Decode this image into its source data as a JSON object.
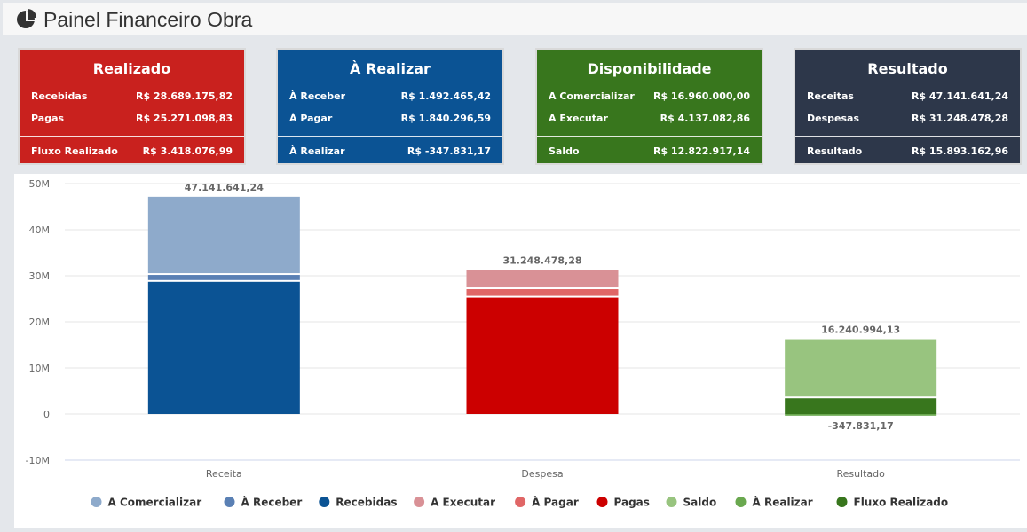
{
  "header": {
    "title": "Painel Financeiro Obra"
  },
  "cards": [
    {
      "title": "Realizado",
      "color": "#c9211e",
      "rows": [
        {
          "label": "Recebidas",
          "value": "R$ 28.689.175,82"
        },
        {
          "label": "Pagas",
          "value": "R$ 25.271.098,83"
        }
      ],
      "footer": {
        "label": "Fluxo Realizado",
        "value": "R$ 3.418.076,99"
      }
    },
    {
      "title": "À Realizar",
      "color": "#0b5394",
      "rows": [
        {
          "label": "À Receber",
          "value": "R$ 1.492.465,42"
        },
        {
          "label": "À Pagar",
          "value": "R$ 1.840.296,59"
        }
      ],
      "footer": {
        "label": "À Realizar",
        "value": "R$ -347.831,17"
      }
    },
    {
      "title": "Disponibilidade",
      "color": "#38761d",
      "rows": [
        {
          "label": "A Comercializar",
          "value": "R$ 16.960.000,00"
        },
        {
          "label": "A Executar",
          "value": "R$ 4.137.082,86"
        }
      ],
      "footer": {
        "label": "Saldo",
        "value": "R$ 12.822.917,14"
      }
    },
    {
      "title": "Resultado",
      "color": "#2d374a",
      "rows": [
        {
          "label": "Receitas",
          "value": "R$ 47.141.641,24"
        },
        {
          "label": "Despesas",
          "value": "R$ 31.248.478,28"
        }
      ],
      "footer": {
        "label": "Resultado",
        "value": "R$ 15.893.162,96"
      }
    }
  ],
  "chart_data": {
    "type": "bar",
    "stacked": true,
    "categories": [
      "Receita",
      "Despesa",
      "Resultado"
    ],
    "yticks": [
      "50M",
      "40M",
      "30M",
      "20M",
      "10M",
      "0",
      "-10M"
    ],
    "ylim": [
      -10000000,
      50000000
    ],
    "grid": true,
    "legend_position": "bottom",
    "series": [
      {
        "name": "A Comercializar",
        "color": "#8eaacb",
        "category": "Receita",
        "value": 16960000.0
      },
      {
        "name": "À Receber",
        "color": "#5a80b4",
        "category": "Receita",
        "value": 1492465.42
      },
      {
        "name": "Recebidas",
        "color": "#0b5394",
        "category": "Receita",
        "value": 28689175.82
      },
      {
        "name": "A Executar",
        "color": "#d99196",
        "category": "Despesa",
        "value": 4137082.86
      },
      {
        "name": "À Pagar",
        "color": "#e06666",
        "category": "Despesa",
        "value": 1840296.59
      },
      {
        "name": "Pagas",
        "color": "#cc0000",
        "category": "Despesa",
        "value": 25271098.83
      },
      {
        "name": "Saldo",
        "color": "#98c47f",
        "category": "Resultado",
        "value": 12822917.14
      },
      {
        "name": "À Realizar",
        "color": "#6aa84f",
        "category": "Resultado",
        "value": -347831.17
      },
      {
        "name": "Fluxo Realizado",
        "color": "#38761d",
        "category": "Resultado",
        "value": 3418076.99
      }
    ],
    "total_labels": [
      {
        "category": "Receita",
        "label": "47.141.641,24"
      },
      {
        "category": "Despesa",
        "label": "31.248.478,28"
      },
      {
        "category": "Resultado",
        "label": "16.240.994,13"
      },
      {
        "category": "Resultado",
        "label": "-347.831,17",
        "negative": true
      }
    ]
  }
}
